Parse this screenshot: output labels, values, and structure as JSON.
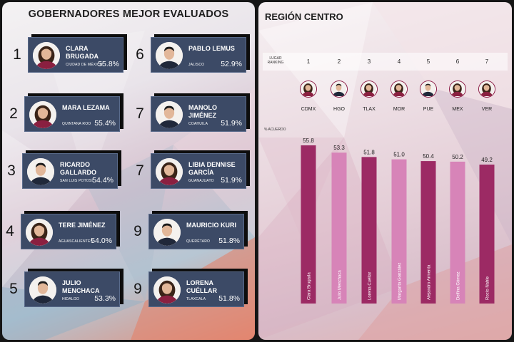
{
  "left": {
    "title": "GOBERNADORES MEJOR EVALUADOS",
    "governors": [
      {
        "rank": "1",
        "name": "CLARA BRUGADA",
        "state": "CIUDAD DE MÉXICO",
        "value": "55.8%"
      },
      {
        "rank": "2",
        "name": "MARA LEZAMA",
        "state": "QUINTANA ROO",
        "value": "55.4%"
      },
      {
        "rank": "3",
        "name": "RICARDO GALLARDO",
        "state": "SAN LUIS POTOSÍ",
        "value": "54.4%"
      },
      {
        "rank": "4",
        "name": "TERE JIMÉNEZ",
        "state": "AGUASCALIENTES",
        "value": "54.0%"
      },
      {
        "rank": "5",
        "name": "JULIO MENCHACA",
        "state": "HIDALGO",
        "value": "53.3%"
      },
      {
        "rank": "6",
        "name": "PABLO LEMUS",
        "state": "JALISCO",
        "value": "52.9%"
      },
      {
        "rank": "7",
        "name": "MANOLO JIMÉNEZ",
        "state": "COAHUILA",
        "value": "51.9%"
      },
      {
        "rank": "7",
        "name": "LIBIA DENNISE GARCÍA",
        "state": "GUANAJUATO",
        "value": "51.9%"
      },
      {
        "rank": "9",
        "name": "MAURICIO KURI",
        "state": "QUERÉTARO",
        "value": "51.8%"
      },
      {
        "rank": "9",
        "name": "LORENA CUÉLLAR",
        "state": "TLAXCALA",
        "value": "51.8%"
      }
    ]
  },
  "right": {
    "title": "REGIÓN CENTRO",
    "rank_label": "LUGAR RANKING",
    "y_label": "% ACUERDO"
  },
  "chart_data": {
    "type": "bar",
    "title": "REGIÓN CENTRO",
    "ylabel": "% ACUERDO",
    "ranks": [
      "1",
      "2",
      "3",
      "4",
      "5",
      "6",
      "7"
    ],
    "categories": [
      "CDMX",
      "HGO",
      "TLAX",
      "MOR",
      "PUE",
      "MEX",
      "VER"
    ],
    "names": [
      "Clara Brugada",
      "Julio Menchaca",
      "Lorena Cuéllar",
      "Margarita González",
      "Alejandro Armenta",
      "Delfina Gómez",
      "Rocío Nahle"
    ],
    "values": [
      55.8,
      53.3,
      51.8,
      51.0,
      50.4,
      50.2,
      49.2
    ],
    "value_labels": [
      "55.8",
      "53.3",
      "51.8",
      "51.0",
      "50.4",
      "50.2",
      "49.2"
    ],
    "colors": [
      "#9c2a64",
      "#d784b8",
      "#9c2a64",
      "#d784b8",
      "#9c2a64",
      "#d784b8",
      "#9c2a64"
    ],
    "ylim": [
      0,
      58
    ],
    "grid": false,
    "legend": "none"
  },
  "colors": {
    "card": "#3c4a66",
    "bar_dark": "#9c2a64",
    "bar_light": "#d784b8",
    "avatar_ring": "#8c1c46"
  }
}
